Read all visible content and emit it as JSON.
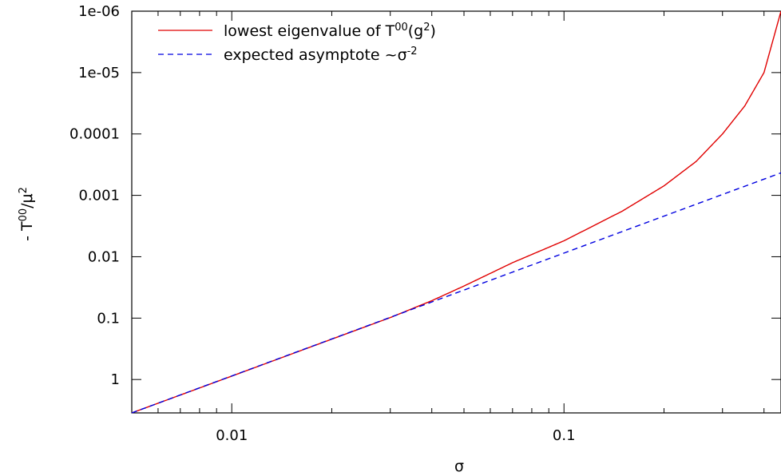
{
  "chart_data": {
    "type": "line",
    "xlabel": "σ",
    "ylabel": {
      "prefix": "- T",
      "sup1": "00",
      "mid": "/μ",
      "sup2": "2"
    },
    "x_scale": "log",
    "y_scale": "log",
    "y_axis_inverted": true,
    "xlim": [
      0.005,
      0.45
    ],
    "ylim": [
      3.5,
      1e-06
    ],
    "x_ticks": [
      {
        "value": 0.01,
        "label": "0.01"
      },
      {
        "value": 0.1,
        "label": "0.1"
      }
    ],
    "y_ticks": [
      {
        "value": 1e-06,
        "label": "1e-06"
      },
      {
        "value": 1e-05,
        "label": "1e-05"
      },
      {
        "value": 0.0001,
        "label": "0.0001"
      },
      {
        "value": 0.001,
        "label": "0.001"
      },
      {
        "value": 0.01,
        "label": "0.01"
      },
      {
        "value": 0.1,
        "label": "0.1"
      },
      {
        "value": 1,
        "label": "1"
      }
    ],
    "grid": false,
    "legend_position": "top-left",
    "series": [
      {
        "legend": {
          "text": "lowest eigenvalue of T",
          "sup": "00",
          "tail_pre": "(g",
          "tail_sup": "2",
          "tail_post": ")"
        },
        "color": "#e00000",
        "style": "solid",
        "x": [
          0.005,
          0.01,
          0.02,
          0.03,
          0.04,
          0.05,
          0.07,
          0.1,
          0.15,
          0.2,
          0.25,
          0.3,
          0.35,
          0.4,
          0.45
        ],
        "y": [
          3.5,
          0.88,
          0.22,
          0.098,
          0.052,
          0.03,
          0.0125,
          0.0055,
          0.0018,
          0.0007,
          0.00028,
          0.0001,
          3.5e-05,
          1e-05,
          1e-06
        ]
      },
      {
        "legend": {
          "text": "expected asymptote ~σ",
          "sup": "-2"
        },
        "color": "#0000e0",
        "style": "dashed",
        "x": [
          0.005,
          0.45
        ],
        "y": [
          3.5,
          0.00043
        ]
      }
    ]
  }
}
